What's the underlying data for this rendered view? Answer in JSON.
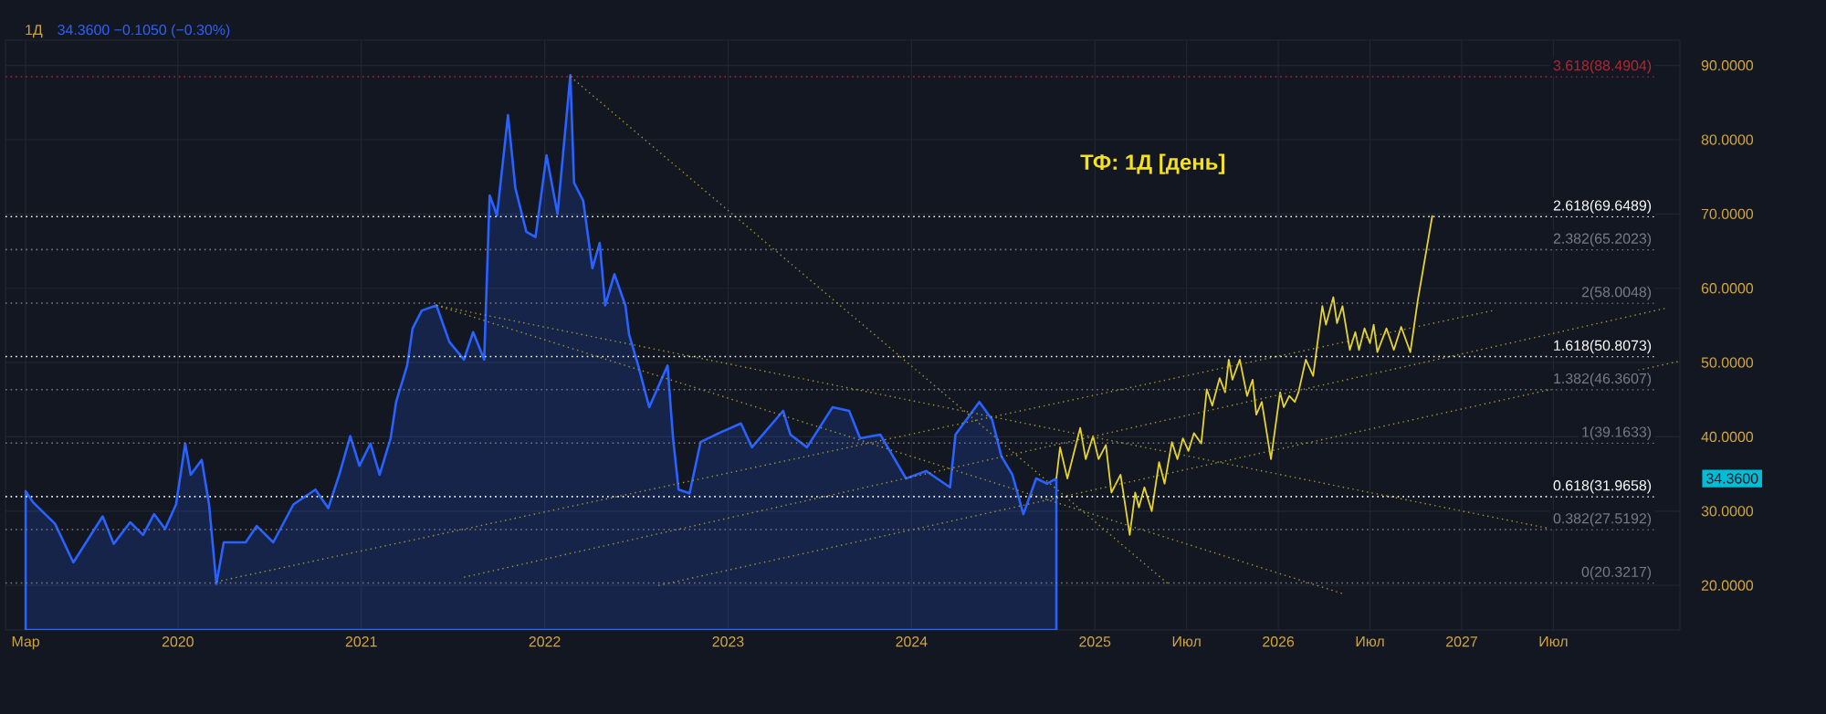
{
  "chart_data": {
    "type": "line",
    "title": "1Д",
    "subtitle": "34.3600  −0.1050 (−0.30%)",
    "xlim": [
      2019.06,
      2028.19
    ],
    "ylim": [
      14,
      93.4
    ],
    "xticks": [
      {
        "value": 2019.17,
        "label": "Мар"
      },
      2020,
      2021,
      2022,
      2023,
      2024,
      2025,
      {
        "value": 2025.5,
        "label": "Июл"
      },
      2026,
      {
        "value": 2026.5,
        "label": "Июл"
      },
      2027,
      {
        "value": 2027.5,
        "label": "Июл"
      }
    ],
    "yticks": [
      {
        "value": 20,
        "label": "20.0000"
      },
      {
        "value": 30,
        "label": "30.0000"
      },
      {
        "value": 40,
        "label": "40.0000"
      },
      {
        "value": 50,
        "label": "50.0000"
      },
      {
        "value": 60,
        "label": "60.0000"
      },
      {
        "value": 70,
        "label": "70.0000"
      },
      {
        "value": 80,
        "label": "80.0000"
      },
      {
        "value": 90,
        "label": "90.0000"
      }
    ],
    "grid": true,
    "series": [
      {
        "type": "area",
        "color": "#2962ff",
        "x": [
          2019.17,
          2019.21,
          2019.33,
          2019.43,
          2019.59,
          2019.65,
          2019.74,
          2019.81,
          2019.87,
          2019.93,
          2019.99,
          2020.04,
          2020.07,
          2020.13,
          2020.17,
          2020.21,
          2020.25,
          2020.37,
          2020.43,
          2020.52,
          2020.63,
          2020.75,
          2020.82,
          2020.88,
          2020.94,
          2020.99,
          2021.05,
          2021.1,
          2021.16,
          2021.19,
          2021.25,
          2021.28,
          2021.33,
          2021.41,
          2021.48,
          2021.56,
          2021.61,
          2021.67,
          2021.7,
          2021.74,
          2021.8,
          2021.84,
          2021.9,
          2021.95,
          2022.01,
          2022.07,
          2022.14,
          2022.16,
          2022.21,
          2022.26,
          2022.3,
          2022.33,
          2022.38,
          2022.44,
          2022.46,
          2022.51,
          2022.57,
          2022.67,
          2022.7,
          2022.73,
          2022.79,
          2022.85,
          2022.95,
          2023.07,
          2023.13,
          2023.3,
          2023.34,
          2023.43,
          2023.57,
          2023.66,
          2023.72,
          2023.83,
          2023.97,
          2024.08,
          2024.21,
          2024.24,
          2024.37,
          2024.44,
          2024.49,
          2024.55,
          2024.61,
          2024.68,
          2024.74,
          2024.79
        ],
        "values": [
          32.7,
          31.2,
          28.3,
          23.1,
          29.3,
          25.6,
          28.5,
          26.8,
          29.6,
          27.6,
          30.9,
          39.1,
          34.9,
          36.9,
          30.9,
          20.2,
          25.8,
          25.8,
          28.0,
          25.8,
          30.9,
          32.9,
          30.4,
          34.9,
          40.1,
          36.1,
          39.1,
          34.9,
          39.8,
          44.7,
          49.6,
          54.6,
          57.0,
          57.7,
          52.8,
          50.4,
          54.1,
          50.4,
          72.5,
          69.8,
          83.3,
          73.5,
          67.6,
          66.9,
          77.9,
          70.0,
          88.7,
          74.2,
          71.8,
          62.7,
          66.1,
          57.7,
          61.9,
          57.7,
          53.8,
          49.6,
          44.0,
          49.6,
          39.8,
          32.9,
          32.4,
          39.3,
          40.5,
          41.8,
          38.6,
          43.5,
          40.3,
          38.6,
          44.0,
          43.5,
          39.8,
          40.3,
          34.4,
          35.4,
          33.2,
          40.3,
          44.7,
          42.3,
          37.4,
          34.9,
          29.6,
          34.4,
          33.7,
          34.4
        ]
      },
      {
        "color": "#e6d52f",
        "x": [
          2024.79,
          2024.81,
          2024.85,
          2024.92,
          2024.95,
          2024.99,
          2025.02,
          2025.06,
          2025.09,
          2025.14,
          2025.19,
          2025.22,
          2025.24,
          2025.27,
          2025.31,
          2025.35,
          2025.38,
          2025.42,
          2025.45,
          2025.48,
          2025.51,
          2025.54,
          2025.58,
          2025.61,
          2025.64,
          2025.68,
          2025.71,
          2025.73,
          2025.75,
          2025.79,
          2025.83,
          2025.86,
          2025.88,
          2025.91,
          2025.96,
          2026.01,
          2026.03,
          2026.06,
          2026.09,
          2026.11,
          2026.15,
          2026.19,
          2026.24,
          2026.26,
          2026.3,
          2026.32,
          2026.35,
          2026.39,
          2026.42,
          2026.44,
          2026.47,
          2026.5,
          2026.52,
          2026.54,
          2026.59,
          2026.63,
          2026.67,
          2026.72,
          2026.76,
          2026.84
        ],
        "values": [
          34.4,
          38.6,
          34.4,
          41.2,
          37.0,
          40.1,
          37.0,
          38.9,
          32.5,
          34.9,
          26.8,
          32.5,
          30.5,
          33.2,
          30.0,
          36.6,
          33.7,
          39.3,
          37.0,
          39.8,
          38.1,
          40.5,
          39.1,
          46.4,
          44.2,
          47.9,
          46.0,
          50.4,
          47.7,
          50.4,
          45.5,
          47.7,
          43.0,
          44.7,
          37.0,
          46.0,
          44.0,
          45.5,
          44.7,
          46.0,
          50.4,
          48.2,
          57.6,
          55.1,
          58.8,
          55.3,
          57.6,
          51.7,
          54.1,
          51.7,
          54.6,
          52.6,
          55.1,
          51.4,
          54.6,
          51.7,
          54.8,
          51.4,
          58.3,
          69.8
        ]
      },
      {
        "color": "#a89a2c",
        "line_style": "dotted",
        "x": [
          2022.14,
          2025.4
        ],
        "values": [
          88.5,
          20.2
        ]
      },
      {
        "color": "#a89a2c",
        "line_style": "dotted",
        "x": [
          2021.41,
          2026.35
        ],
        "values": [
          57.7,
          18.9
        ]
      },
      {
        "color": "#a89a2c",
        "line_style": "dotted",
        "x": [
          2021.41,
          2027.47
        ],
        "values": [
          57.7,
          27.7
        ]
      },
      {
        "color": "#a89a2c",
        "line_style": "dotted",
        "x": [
          2020.21,
          2027.17
        ],
        "values": [
          20.5,
          57.0
        ]
      },
      {
        "color": "#a89a2c",
        "line_style": "dotted",
        "x": [
          2021.56,
          2028.11
        ],
        "values": [
          21.1,
          57.3
        ]
      },
      {
        "color": "#a89a2c",
        "line_style": "dotted",
        "x": [
          2022.62,
          2028.19
        ],
        "values": [
          20.0,
          50.2
        ]
      }
    ],
    "ref_lines": [
      {
        "axis": "y",
        "value": 88.4904,
        "label": "3.618(88.4904)",
        "color": "#b22833",
        "line_style": "dotted"
      },
      {
        "axis": "y",
        "value": 69.6489,
        "label": "2.618(69.6489)",
        "color": "#ffffff",
        "line_style": "dotted"
      },
      {
        "axis": "y",
        "value": 65.2023,
        "label": "2.382(65.2023)",
        "color": "#787b86",
        "line_style": "dotted"
      },
      {
        "axis": "y",
        "value": 58.0048,
        "label": "2(58.0048)",
        "color": "#787b86",
        "line_style": "dotted"
      },
      {
        "axis": "y",
        "value": 50.8073,
        "label": "1.618(50.8073)",
        "color": "#ffffff",
        "line_style": "dotted"
      },
      {
        "axis": "y",
        "value": 46.3607,
        "label": "1.382(46.3607)",
        "color": "#787b86",
        "line_style": "dotted"
      },
      {
        "axis": "y",
        "value": 39.1633,
        "label": "1(39.1633)",
        "color": "#787b86",
        "line_style": "dotted"
      },
      {
        "axis": "y",
        "value": 31.9658,
        "label": "0.618(31.9658)",
        "color": "#ffffff",
        "line_style": "dotted"
      },
      {
        "axis": "y",
        "value": 27.5192,
        "label": "0.382(27.5192)",
        "color": "#787b86",
        "line_style": "dotted"
      },
      {
        "axis": "y",
        "value": 20.3217,
        "label": "0(20.3217)",
        "color": "#787b86",
        "line_style": "dotted"
      }
    ],
    "annotations": [
      "ТФ: 1Д [день]",
      "34.3600"
    ]
  }
}
